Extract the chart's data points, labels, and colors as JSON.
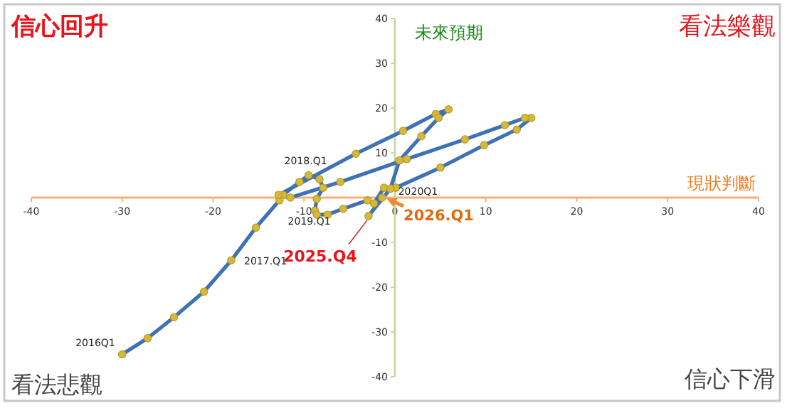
{
  "chart_data": {
    "type": "line",
    "xlabel": "現狀判斷",
    "ylabel": "未來預期",
    "xlim": [
      -40,
      40
    ],
    "ylim": [
      -40,
      40
    ],
    "xticks": [
      -40,
      -30,
      -20,
      -10,
      0,
      10,
      20,
      30,
      40
    ],
    "yticks": [
      -40,
      -30,
      -20,
      -10,
      {
        "value": 0,
        "label": null
      },
      10,
      20,
      30,
      40
    ],
    "grid": false,
    "marker": "circle",
    "line_style": "solid",
    "series": [
      {
        "color": "#3f72b5",
        "x": [
          -30,
          -27.2,
          -24.3,
          -21,
          -18,
          -15.3,
          -12.7,
          -12.3,
          -10.5,
          -9.5,
          -8.3,
          -7.9,
          -8.6,
          -8.8,
          -8.6,
          -7.4,
          -5.7,
          -3,
          -2.3,
          -1.2,
          0.1,
          5,
          9.8,
          13.4,
          15,
          14.3,
          12.1,
          7.7,
          1.3,
          -6,
          -11.5,
          -12.8,
          -4.3,
          0.9,
          4.5,
          5.9,
          4.8,
          2.9,
          0.5,
          -0.5,
          -2.9,
          -1.4
        ],
        "values": [
          -35,
          -31.4,
          -26.7,
          -21,
          -14,
          -6.7,
          -0.6,
          0.6,
          3.5,
          5,
          4.1,
          2.2,
          -0.3,
          -2.9,
          -3.8,
          -3.8,
          -2.5,
          -0.6,
          -1.3,
          2.2,
          2.2,
          6.7,
          11.7,
          15.2,
          17.8,
          17.8,
          16.2,
          13,
          8.6,
          3.5,
          0,
          0.6,
          9.8,
          14.9,
          18.7,
          19.7,
          17.8,
          13.7,
          8.3,
          2,
          -4.1,
          0
        ]
      }
    ],
    "annotations": [
      "信心回升",
      "看法樂觀",
      "看法悲觀",
      "信心下滑",
      {
        "text": "2016Q1",
        "x": -30,
        "y": -35
      },
      {
        "text": "2017.Q1",
        "x": -18,
        "y": -14
      },
      {
        "text": "2018.Q1",
        "x": -9.5,
        "y": 5
      },
      {
        "text": "2019.Q1",
        "x": -8.8,
        "y": -2.9
      },
      {
        "text": "2020Q1",
        "x": -1.2,
        "y": 2.2
      },
      {
        "text": "2025.Q4",
        "x": -2.9,
        "y": -4.1
      },
      {
        "text": "2026.Q1",
        "x": -1.4,
        "y": 0
      }
    ]
  }
}
